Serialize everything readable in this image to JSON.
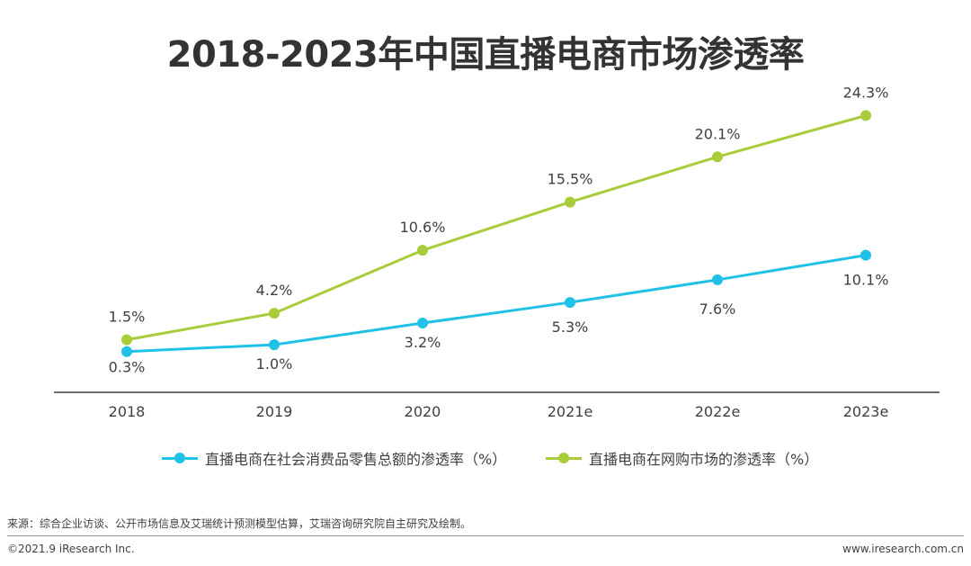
{
  "chart_data": {
    "type": "line",
    "title": "2018-2023年中国直播电商市场渗透率",
    "categories": [
      "2018",
      "2019",
      "2020",
      "2021e",
      "2022e",
      "2023e"
    ],
    "series": [
      {
        "name": "直播电商在社会消费品零售总额的渗透率（%）",
        "color": "#1fc2e6",
        "values": [
          0.3,
          1.0,
          3.2,
          5.3,
          7.6,
          10.1
        ],
        "labels": [
          "0.3%",
          "1.0%",
          "3.2%",
          "5.3%",
          "7.6%",
          "10.1%"
        ]
      },
      {
        "name": "直播电商在网购市场的渗透率（%）",
        "color": "#a8cc3a",
        "values": [
          1.5,
          4.2,
          10.6,
          15.5,
          20.1,
          24.3
        ],
        "labels": [
          "1.5%",
          "4.2%",
          "10.6%",
          "15.5%",
          "20.1%",
          "24.3%"
        ]
      }
    ],
    "ylim": [
      0,
      27
    ],
    "legend_position": "bottom",
    "grid": false
  },
  "footer": {
    "source": "来源：综合企业访谈、公开市场信息及艾瑞统计预测模型估算，艾瑞咨询研究院自主研究及绘制。",
    "copyright": "©2021.9 iResearch Inc.",
    "website": "www.iresearch.com.cn"
  }
}
